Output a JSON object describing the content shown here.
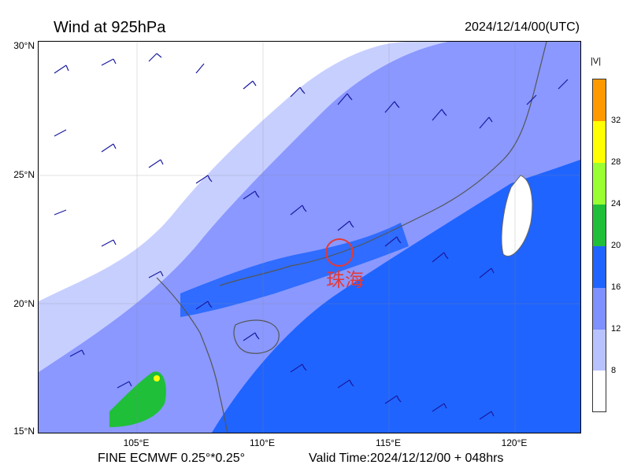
{
  "header": {
    "title": "Wind at 925hPa",
    "datetime": "2024/12/14/00(UTC)"
  },
  "axes": {
    "lat_labels": [
      "30°N",
      "25°N",
      "20°N",
      "15°N"
    ],
    "lon_labels": [
      "105°E",
      "110°E",
      "115°E",
      "120°E"
    ]
  },
  "colorbar": {
    "unit": "|V|",
    "ticks": [
      "32",
      "28",
      "24",
      "20",
      "16",
      "12",
      "8"
    ],
    "colors": [
      "#ff9900",
      "#ffff00",
      "#99ff33",
      "#1fbf3a",
      "#1f64ff",
      "#7f90ff",
      "#b8c2ff",
      "#ffffff"
    ]
  },
  "annotation": {
    "city": "珠海"
  },
  "footer": {
    "model": "FINE ECMWF 0.25°*0.25°",
    "valid_time": "Valid Time:2024/12/12/00 + 048hrs"
  }
}
